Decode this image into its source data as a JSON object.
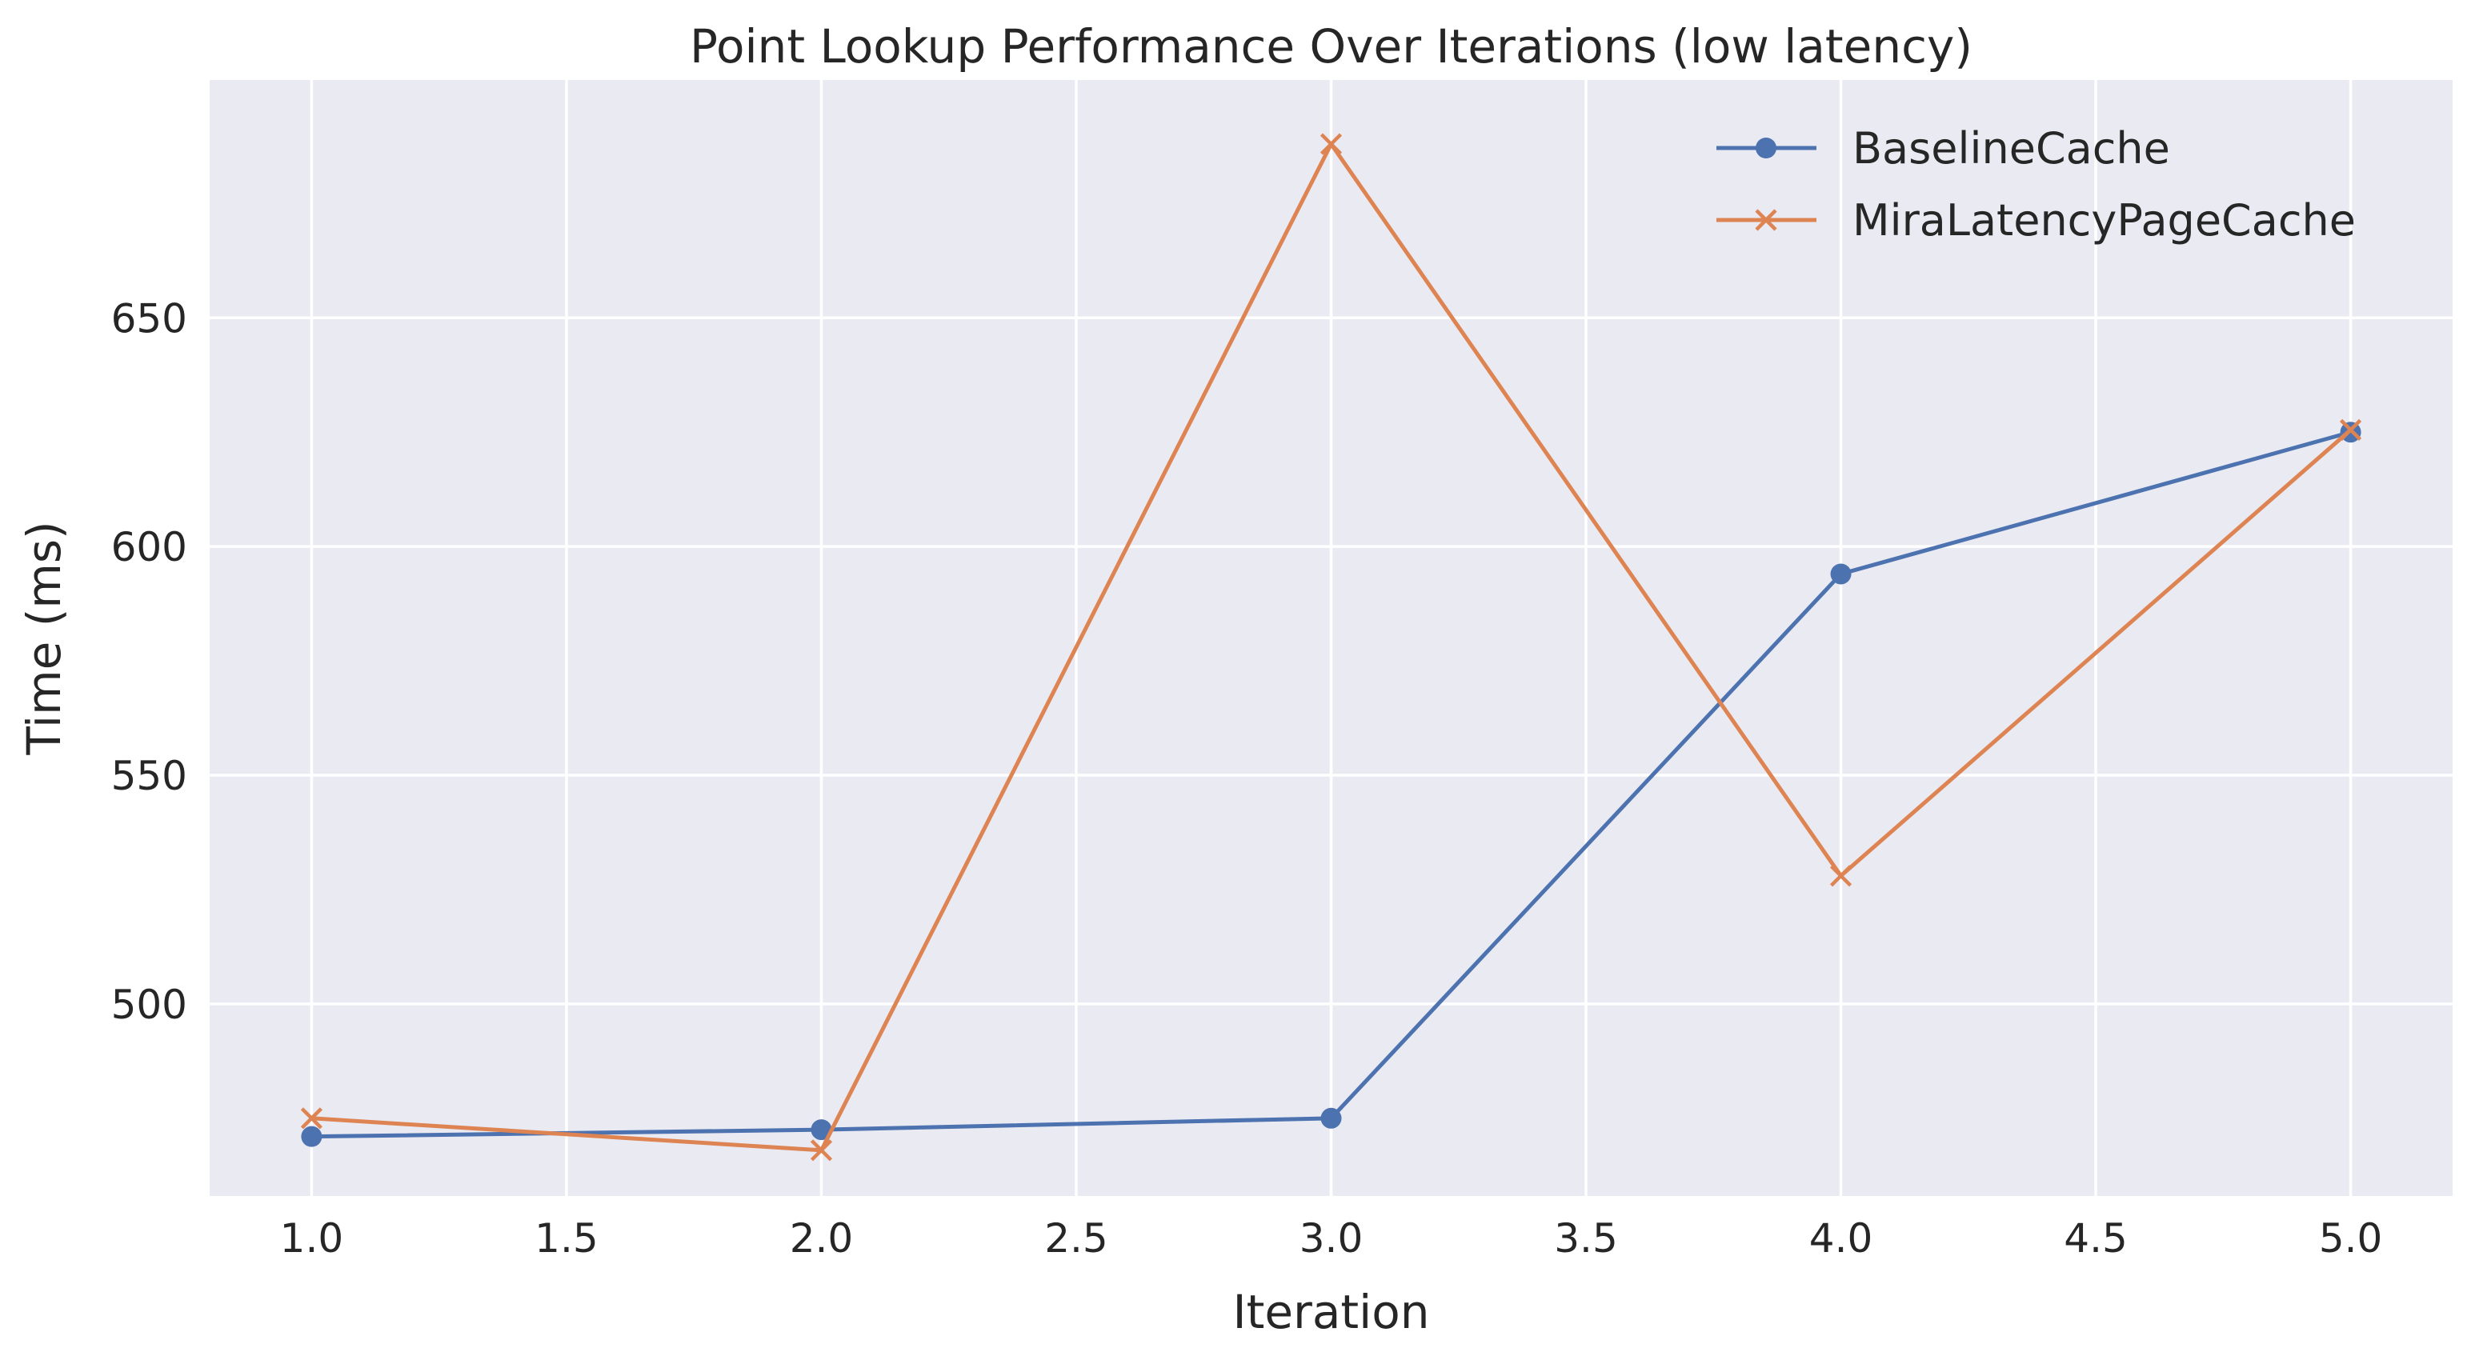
{
  "chart_data": {
    "type": "line",
    "title": "Point Lookup Performance Over Iterations (low latency)",
    "xlabel": "Iteration",
    "ylabel": "Time (ms)",
    "xlim": [
      0.8,
      5.2
    ],
    "ylim": [
      458,
      702
    ],
    "xticks": [
      1.0,
      1.5,
      2.0,
      2.5,
      3.0,
      3.5,
      4.0,
      4.5,
      5.0
    ],
    "xtick_labels": [
      "1.0",
      "1.5",
      "2.0",
      "2.5",
      "3.0",
      "3.5",
      "4.0",
      "4.5",
      "5.0"
    ],
    "yticks": [
      500,
      550,
      600,
      650
    ],
    "ytick_labels": [
      "500",
      "550",
      "600",
      "650"
    ],
    "grid": true,
    "legend_position": "top-right",
    "x": [
      1,
      2,
      3,
      4,
      5
    ],
    "series": [
      {
        "name": "BaselineCache",
        "values": [
          471,
          472.5,
          475,
          594,
          625
        ],
        "color": "#4c72b0",
        "marker": "circle"
      },
      {
        "name": "MiraLatencyPageCache",
        "values": [
          475,
          468,
          688,
          528,
          625.5
        ],
        "color": "#dd8452",
        "marker": "x"
      }
    ],
    "colors": {
      "plot_background": "#eaeaf2",
      "grid": "#ffffff",
      "text": "#262626"
    }
  }
}
